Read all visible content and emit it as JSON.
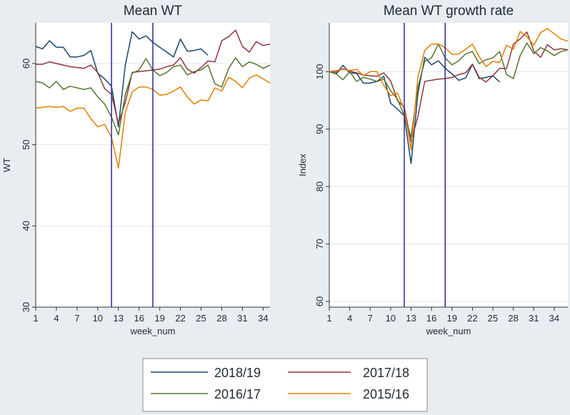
{
  "legend": [
    {
      "name": "2018/19",
      "color": "#1a476f"
    },
    {
      "name": "2017/18",
      "color": "#90353b"
    },
    {
      "name": "2016/17",
      "color": "#55752f"
    },
    {
      "name": "2015/16",
      "color": "#e37e00"
    }
  ],
  "chart_data": [
    {
      "type": "line",
      "title": "Mean WT",
      "xlabel": "week_num",
      "ylabel": "WT",
      "xlim": [
        1,
        35
      ],
      "ylim": [
        30,
        65
      ],
      "xticks": [
        1,
        4,
        7,
        10,
        13,
        16,
        19,
        22,
        25,
        28,
        31,
        34
      ],
      "yticks": [
        30,
        40,
        50,
        60
      ],
      "vlines": [
        12,
        18
      ],
      "grid": true,
      "series": [
        {
          "name": "2018/19",
          "color": "#1a476f",
          "x": [
            1,
            2,
            3,
            4,
            5,
            6,
            7,
            8,
            9,
            10,
            11,
            12,
            13,
            14,
            15,
            16,
            17,
            18,
            19,
            20,
            21,
            22,
            23,
            24,
            25,
            26
          ],
          "values": [
            62.1,
            61.8,
            62.8,
            62.0,
            62.0,
            60.8,
            60.8,
            61.0,
            61.6,
            58.8,
            58.1,
            57.2,
            52.2,
            59.8,
            63.9,
            63.0,
            63.4,
            62.6,
            62.0,
            61.4,
            60.8,
            63.0,
            61.5,
            61.6,
            61.8,
            61.0
          ]
        },
        {
          "name": "2017/18",
          "color": "#90353b",
          "x": [
            1,
            2,
            3,
            4,
            5,
            6,
            7,
            8,
            9,
            10,
            11,
            12,
            13,
            14,
            15,
            16,
            17,
            18,
            19,
            20,
            21,
            22,
            23,
            24,
            25,
            26,
            27,
            28,
            29,
            30,
            31,
            32,
            33,
            34,
            35
          ],
          "values": [
            59.9,
            59.9,
            60.2,
            60.0,
            59.8,
            59.6,
            59.5,
            59.4,
            59.8,
            58.9,
            56.9,
            56.2,
            52.6,
            55.2,
            58.9,
            59.0,
            59.1,
            59.2,
            59.3,
            59.6,
            59.8,
            60.7,
            59.3,
            58.8,
            59.5,
            60.3,
            60.2,
            62.8,
            63.3,
            64.1,
            62.1,
            61.4,
            62.7,
            62.2,
            62.4
          ]
        },
        {
          "name": "2016/17",
          "color": "#55752f",
          "x": [
            1,
            2,
            3,
            4,
            5,
            6,
            7,
            8,
            9,
            10,
            11,
            12,
            13,
            14,
            15,
            16,
            17,
            18,
            19,
            20,
            21,
            22,
            23,
            24,
            25,
            26,
            27,
            28,
            29,
            30,
            31,
            32,
            33,
            34,
            35
          ],
          "values": [
            57.8,
            57.6,
            57.0,
            57.8,
            56.8,
            57.2,
            57.0,
            56.8,
            57.0,
            55.9,
            55.0,
            53.4,
            51.2,
            56.2,
            58.8,
            59.2,
            60.6,
            59.2,
            58.5,
            58.9,
            59.6,
            59.8,
            58.6,
            59.0,
            59.2,
            59.8,
            57.5,
            57.1,
            59.4,
            60.7,
            59.6,
            60.2,
            59.9,
            59.4,
            59.8
          ]
        },
        {
          "name": "2015/16",
          "color": "#e37e00",
          "x": [
            1,
            2,
            3,
            4,
            5,
            6,
            7,
            8,
            9,
            10,
            11,
            12,
            13,
            14,
            15,
            16,
            17,
            18,
            19,
            20,
            21,
            22,
            23,
            24,
            25,
            26,
            27,
            28,
            29,
            30,
            31,
            32,
            33,
            34,
            35
          ],
          "values": [
            54.5,
            54.6,
            54.7,
            54.6,
            54.7,
            54.1,
            54.5,
            54.5,
            53.2,
            52.2,
            52.5,
            50.9,
            47.1,
            54.0,
            56.5,
            57.1,
            57.1,
            56.8,
            56.1,
            56.2,
            56.6,
            57.1,
            55.9,
            55.0,
            55.5,
            55.4,
            57.0,
            56.6,
            58.3,
            57.8,
            57.0,
            58.2,
            58.6,
            58.1,
            57.6
          ]
        }
      ]
    },
    {
      "type": "line",
      "title": "Mean WT growth rate",
      "xlabel": "week_num",
      "ylabel": "Index",
      "xlim": [
        1,
        36
      ],
      "ylim": [
        59,
        108.5
      ],
      "xticks": [
        1,
        4,
        7,
        10,
        13,
        16,
        19,
        22,
        25,
        28,
        31,
        34
      ],
      "yticks": [
        60,
        70,
        80,
        90,
        100
      ],
      "vlines": [
        12,
        18
      ],
      "grid": true,
      "series": [
        {
          "name": "2018/19",
          "color": "#1a476f",
          "x": [
            1,
            2,
            3,
            4,
            5,
            6,
            7,
            8,
            9,
            10,
            11,
            12,
            13,
            14,
            15,
            16,
            17,
            18,
            19,
            20,
            21,
            22,
            23,
            24,
            25,
            26
          ],
          "values": [
            100,
            99.6,
            101.1,
            99.8,
            99.7,
            98.0,
            98.0,
            98.3,
            99.2,
            94.5,
            93.5,
            92.3,
            84.0,
            96.2,
            102.5,
            101.2,
            101.9,
            100.6,
            99.6,
            98.5,
            98.9,
            101.3,
            98.8,
            99.0,
            99.3,
            98.2
          ]
        },
        {
          "name": "2017/18",
          "color": "#90353b",
          "x": [
            1,
            2,
            3,
            4,
            5,
            6,
            7,
            8,
            9,
            10,
            11,
            12,
            13,
            14,
            15,
            16,
            17,
            18,
            19,
            20,
            21,
            22,
            23,
            24,
            25,
            26,
            27,
            28,
            29,
            30,
            31,
            32,
            33,
            34,
            35,
            36
          ],
          "values": [
            100,
            99.9,
            100.5,
            100.1,
            99.8,
            99.4,
            99.3,
            99.2,
            99.8,
            98.4,
            95.0,
            93.8,
            87.8,
            92.2,
            98.3,
            98.5,
            98.7,
            98.8,
            99.0,
            99.5,
            99.8,
            101.3,
            99.0,
            98.2,
            99.3,
            100.6,
            100.5,
            104.8,
            105.7,
            106.9,
            103.6,
            102.5,
            104.7,
            103.8,
            104.0,
            103.8
          ]
        },
        {
          "name": "2016/17",
          "color": "#55752f",
          "x": [
            1,
            2,
            3,
            4,
            5,
            6,
            7,
            8,
            9,
            10,
            11,
            12,
            13,
            14,
            15,
            16,
            17,
            18,
            19,
            20,
            21,
            22,
            23,
            24,
            25,
            26,
            27,
            28,
            29,
            30,
            31,
            32,
            33,
            34,
            35,
            36
          ],
          "values": [
            100,
            99.6,
            98.6,
            100.0,
            98.3,
            99.0,
            98.7,
            98.3,
            98.7,
            96.7,
            95.2,
            92.4,
            88.6,
            97.3,
            101.8,
            102.4,
            104.8,
            102.4,
            101.2,
            101.9,
            103.1,
            103.5,
            101.4,
            102.1,
            102.4,
            103.5,
            99.5,
            98.8,
            102.8,
            105.0,
            103.1,
            104.2,
            103.6,
            102.8,
            103.5,
            103.8
          ]
        },
        {
          "name": "2015/16",
          "color": "#e37e00",
          "x": [
            1,
            2,
            3,
            4,
            5,
            6,
            7,
            8,
            9,
            10,
            11,
            12,
            13,
            14,
            15,
            16,
            17,
            18,
            19,
            20,
            21,
            22,
            23,
            24,
            25,
            26,
            27,
            28,
            29,
            30,
            31,
            32,
            33,
            34,
            35,
            36
          ],
          "values": [
            100,
            100.2,
            100.4,
            100.2,
            100.4,
            99.3,
            100.0,
            100.0,
            97.6,
            95.8,
            96.3,
            93.4,
            86.4,
            99.1,
            103.7,
            104.8,
            104.8,
            104.2,
            103.0,
            103.1,
            103.9,
            104.8,
            102.6,
            100.9,
            101.8,
            101.6,
            104.6,
            103.9,
            107.0,
            106.1,
            104.6,
            106.8,
            107.5,
            106.6,
            105.7,
            105.3
          ]
        }
      ]
    }
  ]
}
